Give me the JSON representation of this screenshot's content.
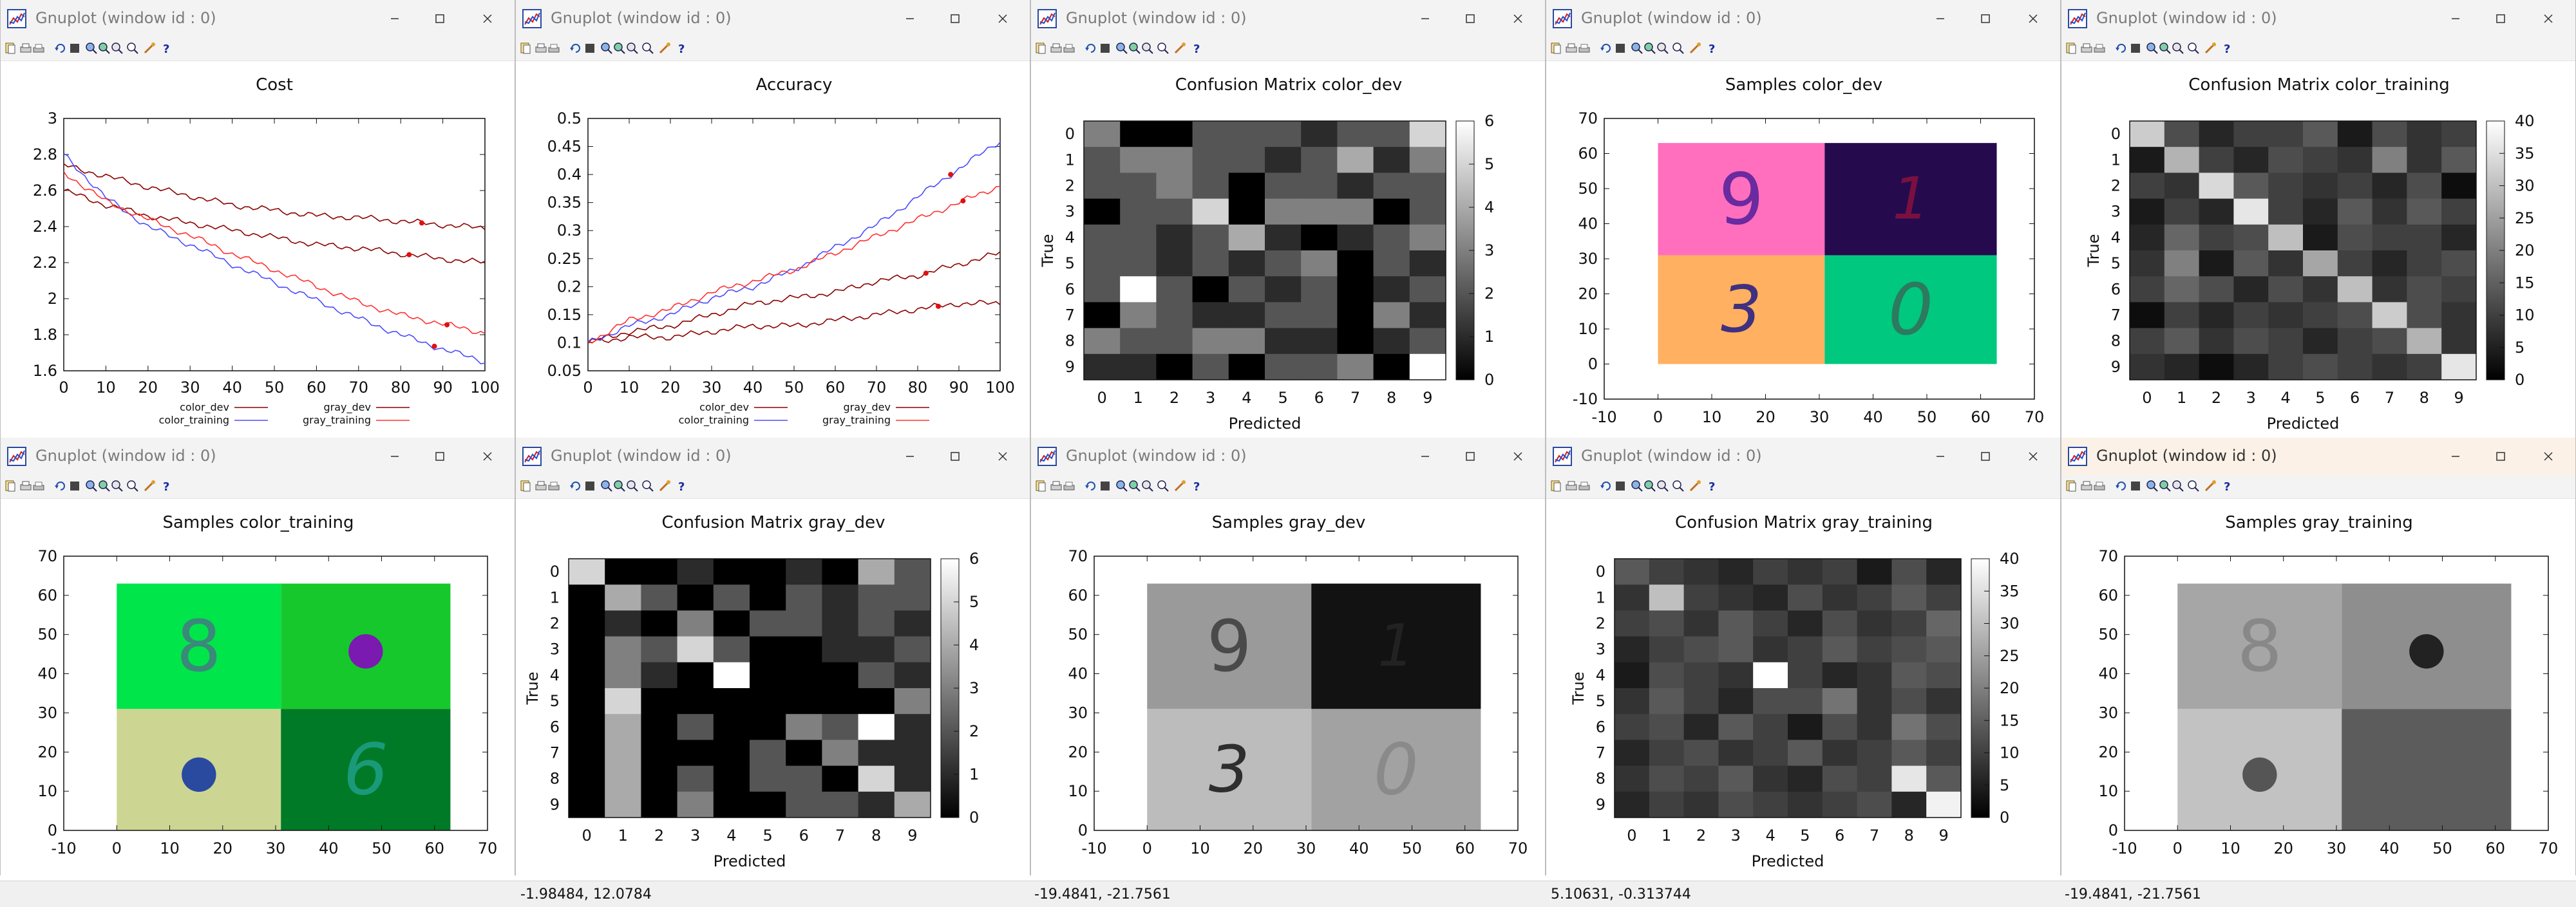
{
  "window_title": "Gnuplot (window id : 0)",
  "status": {
    "w0": "",
    "w1": "-1.98484,  12.0784",
    "w2": "-19.4841, -21.7561",
    "w3": "5.10631, -0.313744",
    "w4": "-19.4841, -21.7561"
  },
  "status_w0_partial": "-19.4841, -21.7561",
  "icons": [
    "gnuplot-app-icon",
    "copy-icon",
    "print-icon",
    "printer-setup-icon",
    "replot-icon",
    "grid-icon",
    "zoom-prev-icon",
    "zoom-next-icon",
    "autoscale-icon",
    "zoom-icon",
    "options-icon",
    "help-icon",
    "minimize-icon",
    "maximize-icon",
    "close-icon"
  ],
  "colors": {
    "color_dev": "#8b0000",
    "color_training": "#4b4bff",
    "gray_dev": "#8b0000",
    "gray_training": "#ff3030"
  },
  "plots": {
    "cost": {
      "title": "Cost",
      "xticks": [
        "0",
        "10",
        "20",
        "30",
        "40",
        "50",
        "60",
        "70",
        "80",
        "90",
        "100"
      ],
      "yticks": [
        "1.6",
        "1.8",
        "2",
        "2.2",
        "2.4",
        "2.6",
        "2.8",
        "3"
      ],
      "legend": [
        "color_dev",
        "gray_dev",
        "color_training",
        "gray_training"
      ]
    },
    "accuracy": {
      "title": "Accuracy",
      "xticks": [
        "0",
        "10",
        "20",
        "30",
        "40",
        "50",
        "60",
        "70",
        "80",
        "90",
        "100"
      ],
      "yticks": [
        "0.05",
        "0.1",
        "0.15",
        "0.2",
        "0.25",
        "0.3",
        "0.35",
        "0.4",
        "0.45",
        "0.5"
      ],
      "legend": [
        "color_dev",
        "gray_dev",
        "color_training",
        "gray_training"
      ]
    },
    "cm_color_dev": {
      "title": "Confusion Matrix color_dev",
      "ylabel": "True",
      "xlabel": "Predicted",
      "cb_ticks": [
        "0",
        "1",
        "2",
        "3",
        "4",
        "5",
        "6"
      ]
    },
    "samples_color_dev": {
      "title": "Samples color_dev",
      "xticks": [
        "-10",
        "0",
        "10",
        "20",
        "30",
        "40",
        "50",
        "60",
        "70"
      ],
      "yticks": [
        "-10",
        "0",
        "10",
        "20",
        "30",
        "40",
        "50",
        "60",
        "70"
      ]
    },
    "cm_color_training": {
      "title": "Confusion Matrix color_training",
      "ylabel": "True",
      "xlabel": "Predicted",
      "cb_ticks": [
        "0",
        "5",
        "10",
        "15",
        "20",
        "25",
        "30",
        "35",
        "40"
      ]
    },
    "samples_color_training": {
      "title": "Samples color_training",
      "xticks": [
        "-10",
        "0",
        "10",
        "20",
        "30",
        "40",
        "50",
        "60",
        "70"
      ],
      "yticks": [
        "0",
        "10",
        "20",
        "30",
        "40",
        "50",
        "60",
        "70"
      ]
    },
    "cm_gray_dev": {
      "title": "Confusion Matrix gray_dev",
      "ylabel": "True",
      "xlabel": "Predicted",
      "cb_ticks": [
        "0",
        "1",
        "2",
        "3",
        "4",
        "5",
        "6"
      ]
    },
    "samples_gray_dev": {
      "title": "Samples gray_dev",
      "xticks": [
        "-10",
        "0",
        "10",
        "20",
        "30",
        "40",
        "50",
        "60",
        "70"
      ],
      "yticks": [
        "0",
        "10",
        "20",
        "30",
        "40",
        "50",
        "60",
        "70"
      ]
    },
    "cm_gray_training": {
      "title": "Confusion Matrix gray_training",
      "ylabel": "True",
      "xlabel": "Predicted",
      "cb_ticks": [
        "0",
        "5",
        "10",
        "15",
        "20",
        "25",
        "30",
        "35",
        "40"
      ]
    },
    "samples_gray_training": {
      "title": "Samples gray_training",
      "xticks": [
        "-10",
        "0",
        "10",
        "20",
        "30",
        "40",
        "50",
        "60",
        "70"
      ],
      "yticks": [
        "0",
        "10",
        "20",
        "30",
        "40",
        "50",
        "60",
        "70"
      ]
    },
    "cm_labels": [
      "0",
      "1",
      "2",
      "3",
      "4",
      "5",
      "6",
      "7",
      "8",
      "9"
    ]
  },
  "chart_data": [
    {
      "type": "line",
      "title": "Cost",
      "xlim": [
        0,
        100
      ],
      "ylim": [
        1.6,
        3
      ],
      "x": [
        0,
        10,
        20,
        30,
        40,
        50,
        60,
        70,
        80,
        90,
        100
      ],
      "series": [
        {
          "name": "color_dev",
          "values": [
            2.6,
            2.52,
            2.46,
            2.42,
            2.38,
            2.34,
            2.3,
            2.28,
            2.25,
            2.22,
            2.2
          ]
        },
        {
          "name": "gray_dev",
          "values": [
            2.74,
            2.68,
            2.62,
            2.57,
            2.52,
            2.49,
            2.46,
            2.45,
            2.43,
            2.41,
            2.39
          ]
        },
        {
          "name": "color_training",
          "values": [
            2.8,
            2.56,
            2.4,
            2.3,
            2.19,
            2.09,
            1.99,
            1.89,
            1.8,
            1.72,
            1.65
          ]
        },
        {
          "name": "gray_training",
          "values": [
            2.7,
            2.54,
            2.44,
            2.35,
            2.25,
            2.16,
            2.07,
            1.98,
            1.91,
            1.86,
            1.81
          ]
        }
      ]
    },
    {
      "type": "line",
      "title": "Accuracy",
      "xlim": [
        0,
        100
      ],
      "ylim": [
        0.05,
        0.5
      ],
      "x": [
        0,
        10,
        20,
        30,
        40,
        50,
        60,
        70,
        80,
        90,
        100
      ],
      "series": [
        {
          "name": "color_dev",
          "values": [
            0.1,
            0.12,
            0.13,
            0.15,
            0.17,
            0.18,
            0.19,
            0.21,
            0.22,
            0.24,
            0.26
          ]
        },
        {
          "name": "gray_dev",
          "values": [
            0.1,
            0.11,
            0.11,
            0.12,
            0.13,
            0.13,
            0.14,
            0.15,
            0.16,
            0.17,
            0.17
          ]
        },
        {
          "name": "color_training",
          "values": [
            0.1,
            0.13,
            0.15,
            0.18,
            0.2,
            0.23,
            0.27,
            0.31,
            0.36,
            0.41,
            0.46
          ]
        },
        {
          "name": "gray_training",
          "values": [
            0.1,
            0.14,
            0.16,
            0.19,
            0.21,
            0.23,
            0.26,
            0.29,
            0.32,
            0.35,
            0.38
          ]
        }
      ]
    },
    {
      "type": "heatmap",
      "title": "Confusion Matrix color_dev",
      "xlabel": "Predicted",
      "ylabel": "True",
      "zlim": [
        0,
        6
      ],
      "values": [
        [
          3,
          0,
          0,
          2,
          2,
          2,
          1,
          2,
          2,
          5
        ],
        [
          2,
          3,
          3,
          2,
          2,
          1,
          2,
          4,
          1,
          3
        ],
        [
          2,
          2,
          3,
          2,
          0,
          2,
          2,
          1,
          2,
          2
        ],
        [
          0,
          2,
          2,
          5,
          0,
          3,
          3,
          3,
          0,
          2
        ],
        [
          2,
          2,
          1,
          2,
          4,
          1,
          0,
          1,
          2,
          3
        ],
        [
          2,
          2,
          1,
          2,
          1,
          2,
          3,
          0,
          2,
          1
        ],
        [
          2,
          6,
          2,
          0,
          2,
          1,
          2,
          0,
          1,
          2
        ],
        [
          0,
          3,
          2,
          1,
          1,
          2,
          2,
          0,
          3,
          1
        ],
        [
          3,
          2,
          2,
          3,
          3,
          1,
          1,
          0,
          1,
          2
        ],
        [
          1,
          1,
          0,
          2,
          0,
          2,
          2,
          3,
          0,
          6
        ]
      ]
    },
    {
      "type": "heatmap",
      "title": "Confusion Matrix color_training",
      "xlabel": "Predicted",
      "ylabel": "True",
      "zlim": [
        0,
        40
      ],
      "values": [
        [
          32,
          12,
          6,
          10,
          10,
          14,
          4,
          12,
          8,
          10
        ],
        [
          4,
          28,
          10,
          6,
          12,
          10,
          8,
          20,
          8,
          14
        ],
        [
          10,
          8,
          34,
          14,
          10,
          8,
          10,
          6,
          12,
          2
        ],
        [
          4,
          10,
          6,
          36,
          10,
          6,
          14,
          8,
          14,
          10
        ],
        [
          6,
          16,
          10,
          12,
          30,
          4,
          12,
          10,
          10,
          6
        ],
        [
          8,
          20,
          4,
          14,
          8,
          26,
          10,
          6,
          10,
          12
        ],
        [
          10,
          16,
          12,
          6,
          12,
          8,
          30,
          8,
          12,
          10
        ],
        [
          2,
          10,
          6,
          10,
          8,
          10,
          12,
          32,
          12,
          8
        ],
        [
          10,
          14,
          8,
          12,
          10,
          6,
          10,
          12,
          28,
          8
        ],
        [
          8,
          6,
          2,
          6,
          10,
          12,
          10,
          8,
          10,
          36
        ]
      ]
    },
    {
      "type": "heatmap",
      "title": "Confusion Matrix gray_dev",
      "xlabel": "Predicted",
      "ylabel": "True",
      "zlim": [
        0,
        6
      ],
      "values": [
        [
          5,
          0,
          0,
          1,
          0,
          0,
          1,
          0,
          4,
          2
        ],
        [
          0,
          4,
          2,
          0,
          2,
          0,
          2,
          1,
          2,
          2
        ],
        [
          0,
          1,
          0,
          3,
          0,
          2,
          2,
          1,
          2,
          1
        ],
        [
          0,
          3,
          2,
          5,
          2,
          0,
          0,
          1,
          1,
          2
        ],
        [
          0,
          3,
          1,
          0,
          6,
          0,
          0,
          0,
          2,
          1
        ],
        [
          0,
          5,
          0,
          0,
          0,
          0,
          0,
          0,
          0,
          3
        ],
        [
          0,
          4,
          0,
          2,
          0,
          0,
          3,
          2,
          6,
          1
        ],
        [
          0,
          4,
          0,
          0,
          0,
          2,
          0,
          3,
          1,
          1
        ],
        [
          0,
          4,
          0,
          2,
          0,
          2,
          2,
          0,
          5,
          1
        ],
        [
          0,
          4,
          0,
          3,
          0,
          0,
          2,
          2,
          1,
          4
        ]
      ]
    },
    {
      "type": "heatmap",
      "title": "Confusion Matrix gray_training",
      "xlabel": "Predicted",
      "ylabel": "True",
      "zlim": [
        0,
        40
      ],
      "values": [
        [
          14,
          10,
          8,
          6,
          10,
          8,
          10,
          4,
          12,
          6
        ],
        [
          8,
          30,
          10,
          8,
          6,
          12,
          8,
          10,
          14,
          10
        ],
        [
          10,
          12,
          8,
          14,
          10,
          6,
          12,
          8,
          10,
          16
        ],
        [
          6,
          10,
          12,
          14,
          8,
          10,
          14,
          10,
          12,
          14
        ],
        [
          4,
          12,
          10,
          8,
          40,
          10,
          6,
          8,
          14,
          12
        ],
        [
          8,
          14,
          10,
          6,
          12,
          12,
          18,
          8,
          12,
          8
        ],
        [
          10,
          12,
          6,
          14,
          10,
          4,
          12,
          8,
          18,
          12
        ],
        [
          6,
          10,
          12,
          8,
          10,
          14,
          8,
          10,
          14,
          10
        ],
        [
          8,
          12,
          10,
          14,
          8,
          6,
          12,
          10,
          36,
          14
        ],
        [
          6,
          10,
          8,
          12,
          10,
          8,
          10,
          12,
          6,
          38
        ]
      ]
    }
  ]
}
